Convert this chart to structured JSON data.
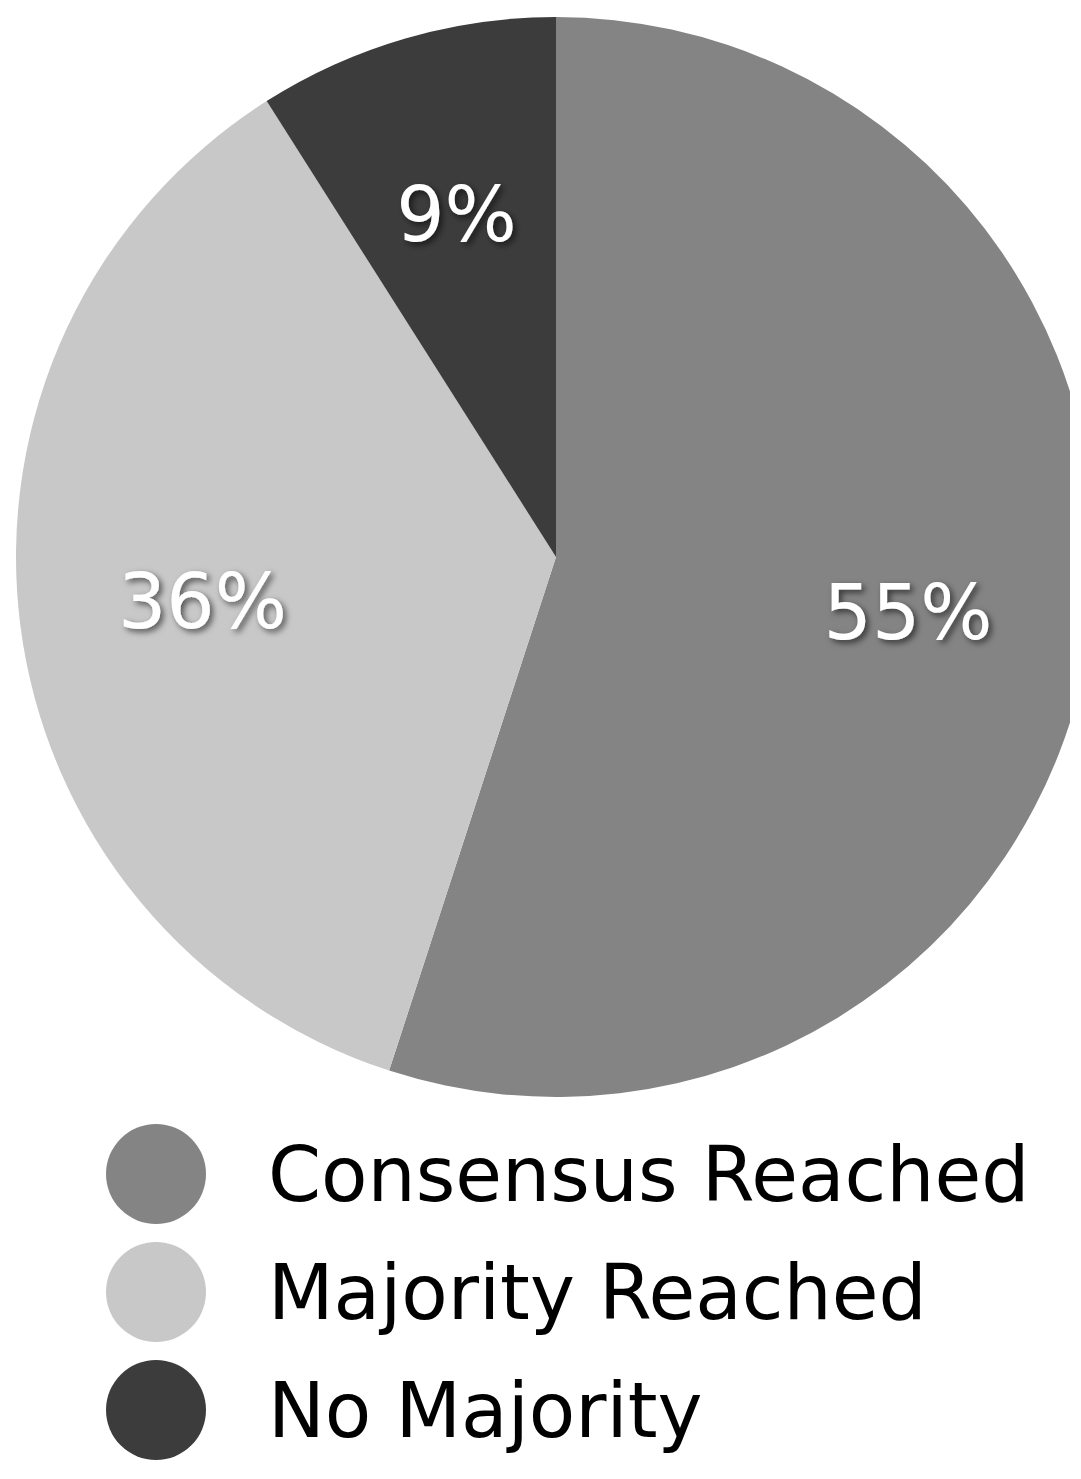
{
  "chart_data": {
    "type": "pie",
    "categories": [
      "Consensus Reached",
      "Majority Reached",
      "No Majority"
    ],
    "values": [
      55,
      36,
      9
    ],
    "value_labels": [
      "55%",
      "36%",
      "9%"
    ],
    "colors": [
      "#848484",
      "#c8c8c8",
      "#3c3c3c"
    ],
    "legend": "bottom left"
  }
}
